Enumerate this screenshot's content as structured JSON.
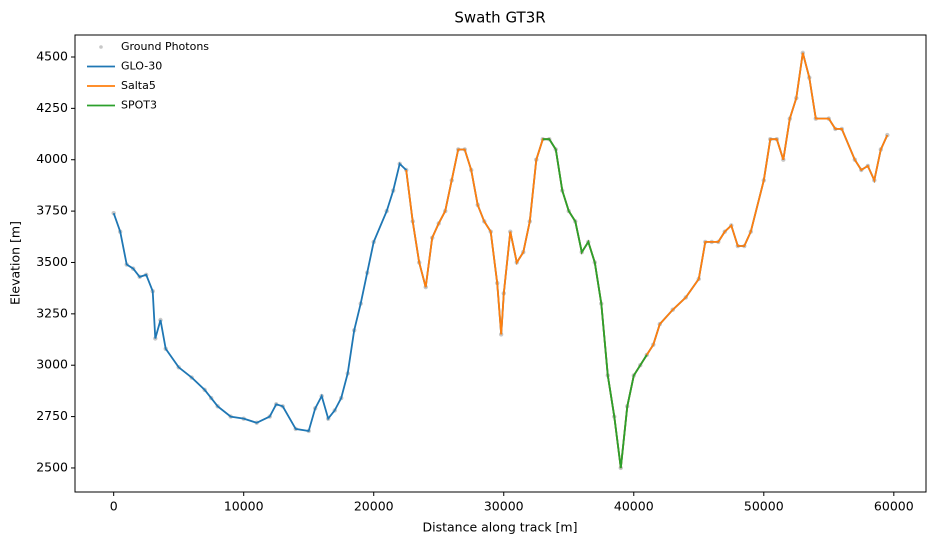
{
  "chart_data": {
    "type": "line",
    "title": "Swath GT3R",
    "x_label": "Distance along track [m]",
    "y_label": "Elevation [m]",
    "x": [
      0,
      500,
      1000,
      1500,
      2000,
      2500,
      3000,
      3200,
      3600,
      4000,
      5000,
      6000,
      7000,
      7500,
      8000,
      9000,
      10000,
      11000,
      12000,
      12500,
      13000,
      14000,
      15000,
      15500,
      16000,
      16500,
      17000,
      17500,
      18000,
      18500,
      19000,
      19500,
      20000,
      21000,
      21500,
      22000,
      22500,
      23000,
      23500,
      24000,
      24500,
      25000,
      25500,
      26000,
      26500,
      27000,
      27500,
      28000,
      28500,
      29000,
      29500,
      29800,
      30000,
      30500,
      31000,
      31500,
      32000,
      32500,
      33000,
      33500,
      34000,
      34500,
      35000,
      35500,
      36000,
      36500,
      37000,
      37500,
      38000,
      38500,
      39000,
      39500,
      40000,
      40500,
      41000,
      41500,
      42000,
      43000,
      44000,
      45000,
      45500,
      46000,
      46500,
      47000,
      47500,
      48000,
      48500,
      49000,
      50000,
      50500,
      51000,
      51500,
      52000,
      52500,
      53000,
      53500,
      54000,
      55000,
      55500,
      56000,
      57000,
      57500,
      58000,
      58500,
      59000,
      59500
    ],
    "series": [
      {
        "name": "Ground Photons",
        "kind": "scatter",
        "color": "#c8c8c8",
        "values": [
          3740,
          3650,
          3490,
          3470,
          3430,
          3440,
          3360,
          3130,
          3220,
          3080,
          2990,
          2940,
          2880,
          2840,
          2800,
          2750,
          2740,
          2720,
          2750,
          2810,
          2800,
          2690,
          2680,
          2790,
          2850,
          2740,
          2780,
          2840,
          2960,
          3170,
          3300,
          3450,
          3600,
          3750,
          3850,
          3980,
          3950,
          3700,
          3500,
          3380,
          3620,
          3690,
          3750,
          3900,
          4050,
          4050,
          3950,
          3780,
          3700,
          3650,
          3400,
          3150,
          3350,
          3650,
          3500,
          3550,
          3700,
          4000,
          4100,
          4100,
          4050,
          3850,
          3750,
          3700,
          3550,
          3600,
          3500,
          3300,
          2950,
          2750,
          2500,
          2800,
          2950,
          3000,
          3050,
          3100,
          3200,
          3270,
          3330,
          3420,
          3600,
          3600,
          3600,
          3650,
          3680,
          3580,
          3580,
          3650,
          3900,
          4100,
          4100,
          4000,
          4200,
          4300,
          4520,
          4400,
          4200,
          4200,
          4150,
          4150,
          4000,
          3950,
          3970,
          3900,
          4050,
          4120
        ]
      },
      {
        "name": "GLO-30",
        "kind": "line",
        "color": "#1f77b4",
        "values": [
          3740,
          3650,
          3490,
          3470,
          3430,
          3440,
          3360,
          3130,
          3220,
          3080,
          2990,
          2940,
          2880,
          2840,
          2800,
          2750,
          2740,
          2720,
          2750,
          2810,
          2800,
          2690,
          2680,
          2790,
          2850,
          2740,
          2780,
          2840,
          2960,
          3170,
          3300,
          3450,
          3600,
          3750,
          3850,
          3980,
          3950,
          3700,
          3500,
          3380,
          3620,
          3690,
          3750,
          3900,
          4050,
          4050,
          3950,
          3780,
          3700,
          3650,
          3400,
          3150,
          3350,
          3650,
          3500,
          3550,
          3700,
          4000,
          4100,
          4100,
          4050,
          3850,
          3750,
          3700,
          3550,
          3600,
          3500,
          3300,
          2950,
          2750,
          2500,
          2800,
          2950,
          3000,
          3050,
          3100,
          3200,
          3270,
          3330,
          3420,
          3600,
          3600,
          3600,
          3650,
          3680,
          3580,
          3580,
          3650,
          3900,
          4100,
          4100,
          4000,
          4200,
          4300,
          4520,
          4400,
          4200,
          4200,
          4150,
          4150,
          4000,
          3950,
          3970,
          3900,
          4050,
          4120
        ]
      },
      {
        "name": "Salta5",
        "kind": "line",
        "color": "#ff7f0e",
        "values": [
          null,
          null,
          null,
          null,
          null,
          null,
          null,
          null,
          null,
          null,
          null,
          null,
          null,
          null,
          null,
          null,
          null,
          null,
          null,
          null,
          null,
          null,
          null,
          null,
          null,
          null,
          null,
          null,
          null,
          null,
          null,
          null,
          null,
          null,
          null,
          null,
          3950,
          3700,
          3500,
          3380,
          3620,
          3690,
          3750,
          3900,
          4050,
          4050,
          3950,
          3780,
          3700,
          3650,
          3400,
          3150,
          3350,
          3650,
          3500,
          3550,
          3700,
          4000,
          4100,
          4100,
          4050,
          3850,
          3750,
          3700,
          3550,
          3600,
          3500,
          3300,
          2950,
          2750,
          2500,
          2800,
          2950,
          3000,
          3050,
          3100,
          3200,
          3270,
          3330,
          3420,
          3600,
          3600,
          3600,
          3650,
          3680,
          3580,
          3580,
          3650,
          3900,
          4100,
          4100,
          4000,
          4200,
          4300,
          4520,
          4400,
          4200,
          4200,
          4150,
          4150,
          4000,
          3950,
          3970,
          3900,
          4050,
          4120
        ]
      },
      {
        "name": "SPOT3",
        "kind": "line",
        "color": "#2ca02c",
        "values": [
          null,
          null,
          null,
          null,
          null,
          null,
          null,
          null,
          null,
          null,
          null,
          null,
          null,
          null,
          null,
          null,
          null,
          null,
          null,
          null,
          null,
          null,
          null,
          null,
          null,
          null,
          null,
          null,
          null,
          null,
          null,
          null,
          null,
          null,
          null,
          null,
          null,
          null,
          null,
          null,
          null,
          null,
          null,
          null,
          null,
          null,
          null,
          null,
          null,
          null,
          null,
          null,
          null,
          null,
          null,
          null,
          null,
          null,
          4100,
          4100,
          4050,
          3850,
          3750,
          3700,
          3550,
          3600,
          3500,
          3300,
          2950,
          2750,
          2500,
          2800,
          2950,
          3000,
          3050,
          null,
          null,
          null,
          null,
          null,
          null,
          null,
          null,
          null,
          null,
          null,
          null,
          null,
          null,
          null,
          null,
          null,
          null,
          null,
          null,
          null,
          null,
          null,
          null,
          null,
          null,
          null,
          null,
          null,
          null,
          null
        ]
      }
    ],
    "xlim": [
      -2975,
      62475
    ],
    "xticks": [
      0,
      10000,
      20000,
      30000,
      40000,
      50000,
      60000
    ],
    "ylim": [
      2383,
      4607
    ],
    "yticks": [
      2500,
      2750,
      3000,
      3250,
      3500,
      3750,
      4000,
      4250,
      4500
    ],
    "legend": "upper-left"
  }
}
